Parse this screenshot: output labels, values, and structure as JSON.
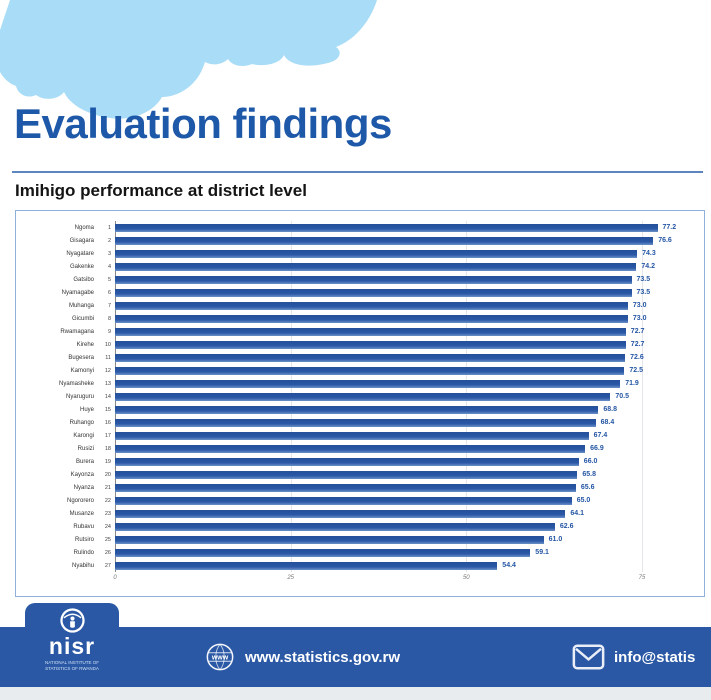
{
  "slide": {
    "title": "Evaluation findings",
    "subtitle": "Imihigo performance at district level"
  },
  "chart_data": {
    "type": "bar",
    "orientation": "horizontal",
    "title": "Imihigo performance at district level",
    "categories": [
      "Ngoma",
      "Gisagara",
      "Nyagatare",
      "Gakenke",
      "Gatsibo",
      "Nyamagabe",
      "Muhanga",
      "Gicumbi",
      "Rwamagana",
      "Kirehe",
      "Bugesera",
      "Kamonyi",
      "Nyamasheke",
      "Nyaruguru",
      "Huye",
      "Ruhango",
      "Karongi",
      "Rusizi",
      "Burera",
      "Kayonza",
      "Nyanza",
      "Ngororero",
      "Musanze",
      "Rubavu",
      "Rutsiro",
      "Rulindo",
      "Nyabihu"
    ],
    "ranks": [
      1,
      2,
      3,
      4,
      5,
      6,
      7,
      8,
      9,
      10,
      11,
      12,
      13,
      14,
      15,
      16,
      17,
      18,
      19,
      20,
      21,
      22,
      23,
      24,
      25,
      26,
      27
    ],
    "values": [
      77.2,
      76.6,
      74.3,
      74.2,
      73.5,
      73.5,
      73.0,
      73.0,
      72.7,
      72.7,
      72.6,
      72.5,
      71.9,
      70.5,
      68.8,
      68.4,
      67.4,
      66.9,
      66.0,
      65.8,
      65.6,
      65.0,
      64.1,
      62.6,
      61.0,
      59.1,
      54.4
    ],
    "x_ticks": [
      0,
      25,
      50,
      75
    ],
    "xlim": [
      0,
      83
    ],
    "xlabel": "",
    "ylabel": "",
    "grid": true,
    "legend": false,
    "bar_color": "#2a58a5",
    "value_label_color": "#2456a4"
  },
  "footer": {
    "logo_text": "nisr",
    "logo_sub1": "National Institute of",
    "logo_sub2": "Statistics of Rwanda",
    "website": "www.statistics.gov.rw",
    "email": "info@statis"
  },
  "colors": {
    "title_blue": "#1e58a8",
    "bar_blue": "#2a58a5",
    "cloud_blue": "#a9dcf6",
    "footer_blue": "#2a58a5",
    "rule_blue": "#5d86bf"
  }
}
